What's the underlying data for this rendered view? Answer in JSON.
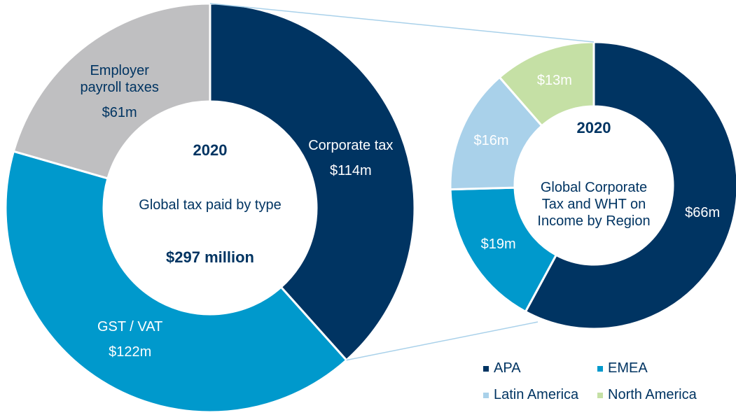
{
  "chart_data": [
    {
      "type": "pie",
      "title": "2020",
      "subtitle": "Global tax paid by type",
      "annotation": "$297 million",
      "categories": [
        "Corporate tax",
        "GST / VAT",
        "Employer payroll taxes"
      ],
      "values": [
        114,
        122,
        61
      ],
      "value_labels": [
        "$114m",
        "$122m",
        "$61m"
      ],
      "colors": [
        "#003462",
        "#0099cc",
        "#bfbfc1"
      ]
    },
    {
      "type": "pie",
      "title": "2020",
      "subtitle": "Global Corporate Tax and WHT on Income by Region",
      "categories": [
        "APA",
        "EMEA",
        "Latin America",
        "North America"
      ],
      "values": [
        66,
        19,
        16,
        13
      ],
      "value_labels": [
        "$66m",
        "$19m",
        "$16m",
        "$13m"
      ],
      "colors": [
        "#003462",
        "#0099cc",
        "#a9d1ea",
        "#c5e0a5"
      ],
      "legend": "bottom-right"
    }
  ]
}
